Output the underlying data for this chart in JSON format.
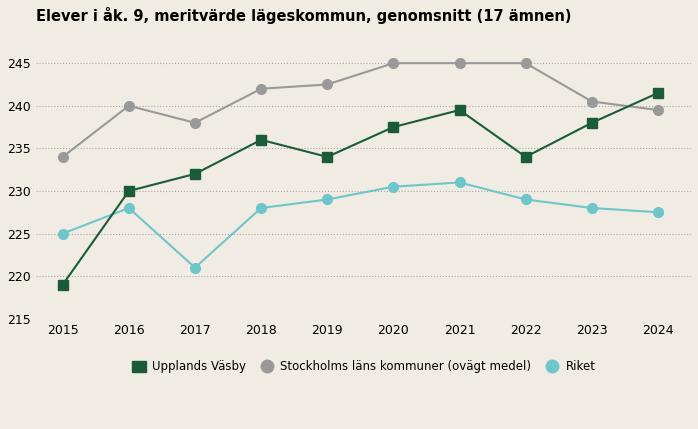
{
  "title": "Elever i åk. 9, meritvärde lägeskommun, genomsnitt (17 ämnen)",
  "years": [
    2015,
    2016,
    2017,
    2018,
    2019,
    2020,
    2021,
    2022,
    2023,
    2024
  ],
  "upplands_vasby": [
    219,
    230,
    232,
    236,
    234,
    237.5,
    239.5,
    234,
    238,
    241.5
  ],
  "stockholms_lan": [
    234,
    240,
    238,
    242,
    242.5,
    245,
    245,
    245,
    240.5,
    239.5
  ],
  "riket": [
    225,
    228,
    221,
    228,
    229,
    230.5,
    231,
    229,
    228,
    227.5
  ],
  "color_upplands": "#1a5c3a",
  "color_stockholm": "#999999",
  "color_riket": "#6ec6ca",
  "background_color": "#f0ece4",
  "ylim": [
    215,
    248
  ],
  "yticks": [
    215,
    220,
    225,
    230,
    235,
    240,
    245
  ],
  "legend_labels": [
    "Upplands Väsby",
    "Stockholms läns kommuner (ovägt medel)",
    "Riket"
  ],
  "title_fontsize": 10.5,
  "tick_fontsize": 9,
  "legend_fontsize": 8.5
}
